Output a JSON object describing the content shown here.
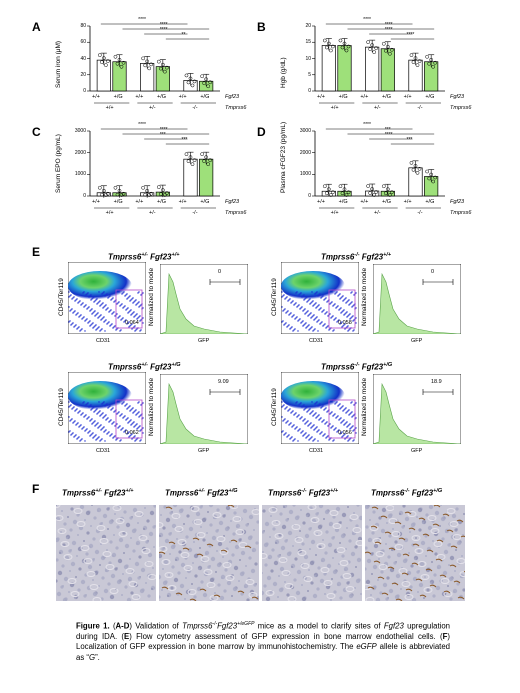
{
  "panels": {
    "A": {
      "label": "A",
      "ylabel": "Serum iron (μM)",
      "yticks": [
        "80",
        "60",
        "40",
        "20",
        "0"
      ],
      "groups": [
        "+/+",
        "+/G",
        "+/+",
        "+/G",
        "+/+",
        "+/G"
      ],
      "genos": [
        "+/+",
        "+/-",
        "-/-"
      ],
      "gene1": "Fgf23",
      "gene2": "Tmprss6",
      "sig": [
        "****",
        "****",
        "****",
        "**"
      ],
      "chart_data": {
        "type": "bar",
        "title": "",
        "ylabel": "Serum iron (μM)",
        "ylim": [
          0,
          80
        ],
        "categories": [
          "+/+ +/+",
          "+/+ +/G",
          "+/- +/+",
          "+/- +/G",
          "-/- +/+",
          "-/- +/G"
        ],
        "values": [
          38,
          36,
          34,
          30,
          13,
          12
        ]
      }
    },
    "B": {
      "label": "B",
      "ylabel": "Hgb (g/dL)",
      "yticks": [
        "20",
        "15",
        "10",
        "5",
        "0"
      ],
      "groups": [
        "+/+",
        "+/G",
        "+/+",
        "+/G",
        "+/+",
        "+/G"
      ],
      "genos": [
        "+/+",
        "+/-",
        "-/-"
      ],
      "gene1": "Fgf23",
      "gene2": "Tmprss6",
      "sig": [
        "****",
        "****",
        "****",
        "****"
      ],
      "chart_data": {
        "type": "bar",
        "title": "",
        "ylabel": "Hgb (g/dL)",
        "ylim": [
          0,
          20
        ],
        "categories": [
          "+/+ +/+",
          "+/+ +/G",
          "+/- +/+",
          "+/- +/G",
          "-/- +/+",
          "-/- +/G"
        ],
        "values": [
          14,
          14,
          13.5,
          13,
          9.5,
          9
        ]
      }
    },
    "C": {
      "label": "C",
      "ylabel": "Serum EPO (pg/mL)",
      "yticks": [
        "3000",
        "2000",
        "1000",
        "0"
      ],
      "groups": [
        "+/+",
        "+/G",
        "+/+",
        "+/G",
        "+/+",
        "+/G"
      ],
      "genos": [
        "+/+",
        "+/-",
        "-/-"
      ],
      "gene1": "Fgf23",
      "gene2": "Tmprss6",
      "sig": [
        "****",
        "****",
        "***",
        "***"
      ],
      "chart_data": {
        "type": "bar",
        "title": "",
        "ylabel": "Serum EPO (pg/mL)",
        "ylim": [
          0,
          3000
        ],
        "categories": [
          "+/+ +/+",
          "+/+ +/G",
          "+/- +/+",
          "+/- +/G",
          "-/- +/+",
          "-/- +/G"
        ],
        "values": [
          150,
          150,
          150,
          180,
          1700,
          1700
        ]
      }
    },
    "D": {
      "label": "D",
      "ylabel": "Plasma cFGF23 (pg/mL)",
      "yticks": [
        "3000",
        "2000",
        "1000",
        "0"
      ],
      "groups": [
        "+/+",
        "+/G",
        "+/+",
        "+/G",
        "+/+",
        "+/G"
      ],
      "genos": [
        "+/+",
        "+/-",
        "-/-"
      ],
      "gene1": "Fgf23",
      "gene2": "Tmprss6",
      "sig": [
        "****",
        "***",
        "****",
        "***"
      ],
      "chart_data": {
        "type": "bar",
        "title": "",
        "ylabel": "Plasma cFGF23 (pg/mL)",
        "ylim": [
          0,
          3000
        ],
        "categories": [
          "+/+ +/+",
          "+/+ +/G",
          "+/- +/+",
          "+/- +/G",
          "-/- +/+",
          "-/- +/G"
        ],
        "values": [
          220,
          220,
          230,
          220,
          1300,
          900
        ]
      }
    }
  },
  "flow": {
    "label": "E",
    "blocks": [
      {
        "title": "Tmprss6",
        "sup": "+/-",
        "title2": " Fgf23",
        "sup2": "+/+",
        "gate": "0.064",
        "gfp": "0"
      },
      {
        "title": "Tmprss6",
        "sup": "-/-",
        "title2": " Fgf23",
        "sup2": "+/+",
        "gate": "0.058",
        "gfp": "0"
      },
      {
        "title": "Tmprss6",
        "sup": "+/-",
        "title2": " Fgf23",
        "sup2": "+/G",
        "gate": "0.062",
        "gfp": "9.09"
      },
      {
        "title": "Tmprss6",
        "sup": "-/-",
        "title2": " Fgf23",
        "sup2": "+/G",
        "gate": "0.056",
        "gfp": "18.9"
      }
    ],
    "xaxis": "CD31",
    "yaxis": "CD45/Ter119",
    "hist_y": "Normalized to mode",
    "hist_x": "GFP"
  },
  "ihc": {
    "label": "F",
    "tiles": [
      {
        "title": "Tmprss6",
        "sup": "+/-",
        "title2": " Fgf23",
        "sup2": "+/+"
      },
      {
        "title": "Tmprss6",
        "sup": "+/-",
        "title2": " Fgf23",
        "sup2": "+/G"
      },
      {
        "title": "Tmprss6",
        "sup": "-/-",
        "title2": " Fgf23",
        "sup2": "+/+"
      },
      {
        "title": "Tmprss6",
        "sup": "-/-",
        "title2": " Fgf23",
        "sup2": "+/G"
      }
    ]
  },
  "caption": {
    "fig": "Figure 1.",
    "p1": " (",
    "ad": "A-D",
    "p2": ") Validation of ",
    "tm": "Tmprss6",
    "tmsup": "-/-",
    "fg": "Fgf23",
    "fgsup": "+/eGFP",
    "p3": " mice as a model to clarify sites of ",
    "fg2": "Fgf23",
    "p4": " upregulation during IDA. (",
    "e": "E",
    "p5": ") Flow cytometry assessment of GFP expression in bone marrow endothelial cells. (",
    "f": "F",
    "p6": ") Localization of GFP expression in bone marrow by immunohistochemistry. The ",
    "egfp": "eGFP",
    "p7": " allele is abbreviated as “",
    "g": "G",
    "p8": "”."
  }
}
